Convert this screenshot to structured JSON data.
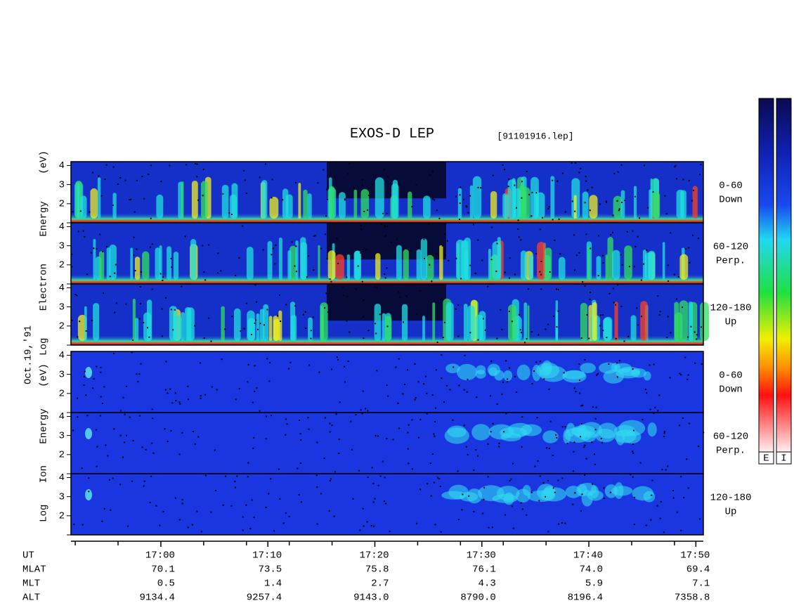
{
  "title": "EXOS-D LEP",
  "file": "[91101916.lep]",
  "date": "Oct.19,'91",
  "electron_axis_label": "Log Electron Energy (eV)",
  "ion_axis_label": "Log Ion Energy (eV)",
  "electron_panels": [
    {
      "label": [
        "0-60",
        "Down"
      ]
    },
    {
      "label": [
        "60-120",
        "Perp."
      ]
    },
    {
      "label": [
        "120-180",
        "Up"
      ]
    }
  ],
  "ion_panels": [
    {
      "label": [
        "0-60",
        "Down"
      ]
    },
    {
      "label": [
        "60-120",
        "Perp."
      ]
    },
    {
      "label": [
        "120-180",
        "Up"
      ]
    }
  ],
  "ylim": [
    1,
    4.2
  ],
  "yticks": [
    2,
    3,
    4
  ],
  "xlim": [
    1011.6,
    1070.7
  ],
  "xticks": [
    {
      "value": 1020,
      "label": "17:00"
    },
    {
      "value": 1030,
      "label": "17:10"
    },
    {
      "value": 1040,
      "label": "17:20"
    },
    {
      "value": 1050,
      "label": "17:30"
    },
    {
      "value": 1060,
      "label": "17:40"
    },
    {
      "value": 1070,
      "label": "17:50"
    }
  ],
  "x_minor_ticks": [
    1012,
    1016,
    1024,
    1028,
    1032,
    1036,
    1044,
    1048,
    1052,
    1056,
    1064,
    1068
  ],
  "ephemeris": {
    "labels": [
      "UT",
      "MLAT",
      "MLT",
      "ALT"
    ],
    "rows": [
      [
        "70.1",
        "73.5",
        "75.8",
        "76.1",
        "74.0",
        "69.4"
      ],
      [
        "0.5",
        "1.4",
        "2.7",
        "4.3",
        "5.9",
        "7.1"
      ],
      [
        "9134.4",
        "9257.4",
        "9143.0",
        "8790.0",
        "8196.4",
        "7358.8"
      ]
    ]
  },
  "colorbars": [
    "E",
    "I"
  ]
}
